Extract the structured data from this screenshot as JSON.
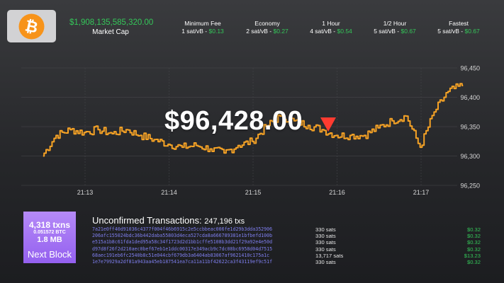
{
  "header": {
    "logo_icon": "bitcoin-icon",
    "market_cap": {
      "value": "$1,908,135,585,320.00",
      "label": "Market Cap"
    },
    "fees": [
      {
        "title": "Minimum Fee",
        "rate": "1 sat/vB",
        "sep": " - ",
        "usd": "$0.13"
      },
      {
        "title": "Economy",
        "rate": "2 sat/vB",
        "sep": " - ",
        "usd": "$0.27"
      },
      {
        "title": "1 Hour",
        "rate": "4 sat/vB",
        "sep": " - ",
        "usd": "$0.54"
      },
      {
        "title": "1/2 Hour",
        "rate": "5 sat/vB",
        "sep": " - ",
        "usd": "$0.67"
      },
      {
        "title": "Fastest",
        "rate": "5 sat/vB",
        "sep": " - ",
        "usd": "$0.67"
      }
    ]
  },
  "price": {
    "value": "$96,428.00",
    "direction": "down",
    "arrow_color": "#ff3b30"
  },
  "colors": {
    "line": "#f7a325",
    "positive": "#34c759",
    "bitcoin": "#f7931a",
    "block": "#9e6cf2"
  },
  "chart_data": {
    "type": "line",
    "x": [
      "21:12:30",
      "21:12:40",
      "21:12:50",
      "21:13:00",
      "21:13:10",
      "21:13:20",
      "21:13:30",
      "21:13:40",
      "21:13:50",
      "21:14:00",
      "21:14:10",
      "21:14:20",
      "21:14:30",
      "21:14:40",
      "21:14:50",
      "21:15:00",
      "21:15:10",
      "21:15:20",
      "21:15:30",
      "21:15:40",
      "21:15:50",
      "21:16:00",
      "21:16:10",
      "21:16:20",
      "21:16:30",
      "21:16:40",
      "21:16:50",
      "21:17:00",
      "21:17:10",
      "21:17:20",
      "21:17:30"
    ],
    "values": [
      96300,
      96335,
      96345,
      96340,
      96345,
      96338,
      96345,
      96335,
      96328,
      96320,
      96315,
      96318,
      96312,
      96305,
      96318,
      96325,
      96350,
      96368,
      96360,
      96352,
      96345,
      96335,
      96335,
      96335,
      96348,
      96360,
      96368,
      96315,
      96375,
      96410,
      96420
    ],
    "ylim": [
      96250,
      96450
    ],
    "yticks": [
      "96,450",
      "96,400",
      "96,350",
      "96,300",
      "96,250"
    ],
    "ytick_values": [
      96450,
      96400,
      96350,
      96300,
      96250
    ],
    "xticks": [
      "21:13",
      "21:14",
      "21:15",
      "21:16",
      "21:17"
    ],
    "grid": true
  },
  "next_block": {
    "txns": "4,318 txns",
    "btc": "0.051572 BTC",
    "size": "1.8 MB",
    "label": "Next Block"
  },
  "unconfirmed": {
    "title": "Unconfirmed Transactions:",
    "count": "247,196 txs",
    "rows": [
      {
        "hash": "7a21e0ff40d91036c4377f004f46b6915c2e5ccbbeac006fe1d29b3dda352906",
        "size": "330 sats",
        "fee": "$0.32"
      },
      {
        "hash": "206afc155024bdc36b442daba55803d4eca527cda8a666789381e1bfbefd100b",
        "size": "330 sats",
        "fee": "$0.32"
      },
      {
        "hash": "e515a1b8c61fda1ded95a58c34f1723d2d1bb1cffe5108b3dd21f29a92e4e50d",
        "size": "330 sats",
        "fee": "$0.32"
      },
      {
        "hash": "d97d8f26f2d210aec0bef67eb1e1ddc00317e349acb9c7dc08bc6958d04d7515",
        "size": "330 sats",
        "fee": "$0.32"
      },
      {
        "hash": "68aec191eb6fc2540b8c51e044cbf679db3a6404ab83067af9621410c175a1c",
        "size": "13,717 sats",
        "fee": "$13.23"
      },
      {
        "hash": "1e7e79929a2df81a943aa45eb187541ea7ca11a11bf42622ca3f43119ef9c51f",
        "size": "330 sats",
        "fee": "$0.32"
      }
    ]
  }
}
